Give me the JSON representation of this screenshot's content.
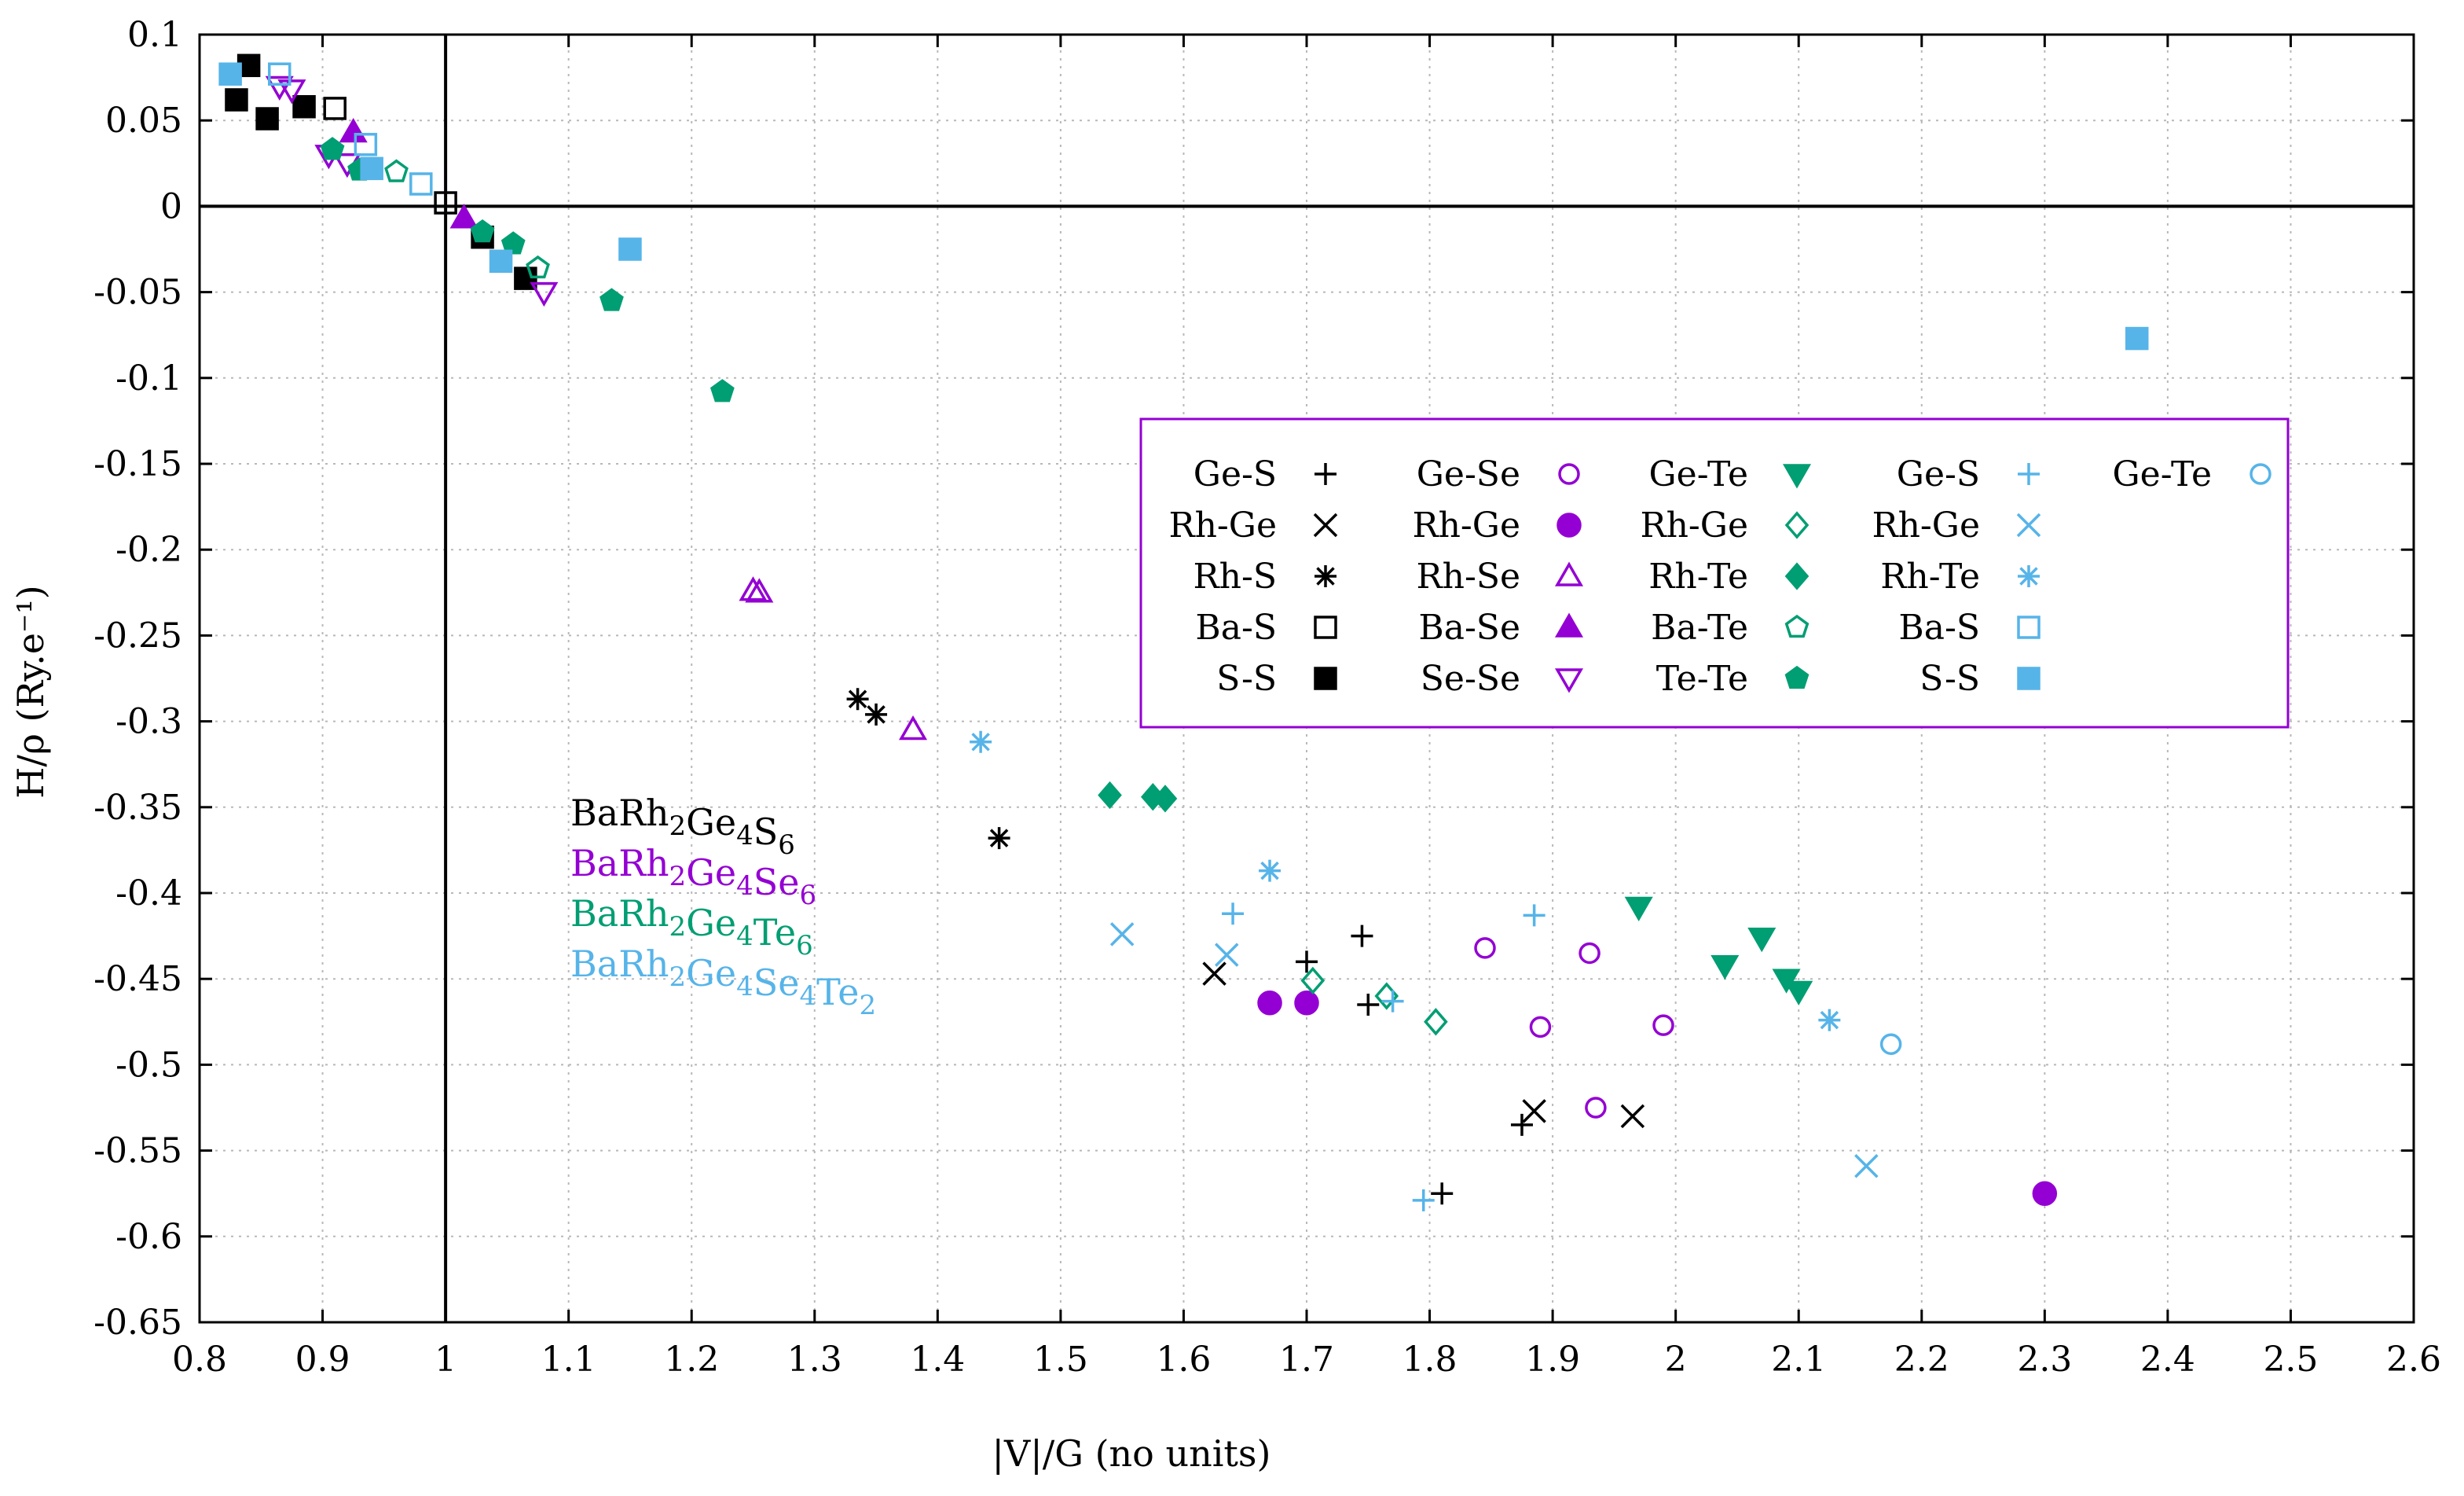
{
  "chart_data": {
    "type": "scatter",
    "xlabel": "|V|/G (no units)",
    "ylabel": "H/ρ (Ry.e⁻¹)",
    "xlim": [
      0.8,
      2.6
    ],
    "ylim": [
      -0.65,
      0.1
    ],
    "grid": true,
    "legend_position": "middle-right",
    "x_ticks": [
      "0.8",
      "0.9",
      "1",
      "1.1",
      "1.2",
      "1.3",
      "1.4",
      "1.5",
      "1.6",
      "1.7",
      "1.8",
      "1.9",
      "2",
      "2.1",
      "2.2",
      "2.3",
      "2.4",
      "2.5",
      "2.6"
    ],
    "y_ticks": [
      "0.1",
      "0.05",
      "0",
      "-0.05",
      "-0.1",
      "-0.15",
      "-0.2",
      "-0.25",
      "-0.3",
      "-0.35",
      "-0.4",
      "-0.45",
      "-0.5",
      "-0.55",
      "-0.6",
      "-0.65"
    ],
    "compounds": [
      {
        "name": "BaRh2Ge4S6",
        "color": "#000000"
      },
      {
        "name": "BaRh2Ge4Se6",
        "color": "#9400d3"
      },
      {
        "name": "BaRh2Ge4Te6",
        "color": "#009e73"
      },
      {
        "name": "BaRh2Ge4Se4Te2",
        "color": "#56b4e9"
      }
    ],
    "series": [
      {
        "name": "Ge-S",
        "compound": "BaRh2Ge4S6",
        "color": "#000000",
        "marker": "plus",
        "points": [
          [
            1.7,
            -0.44
          ],
          [
            1.745,
            -0.425
          ],
          [
            1.75,
            -0.465
          ],
          [
            1.81,
            -0.575
          ],
          [
            1.875,
            -0.535
          ]
        ]
      },
      {
        "name": "Rh-Ge",
        "compound": "BaRh2Ge4S6",
        "color": "#000000",
        "marker": "cross",
        "points": [
          [
            1.625,
            -0.447
          ],
          [
            1.885,
            -0.527
          ],
          [
            1.965,
            -0.53
          ]
        ]
      },
      {
        "name": "Rh-S",
        "compound": "BaRh2Ge4S6",
        "color": "#000000",
        "marker": "star",
        "points": [
          [
            1.335,
            -0.287
          ],
          [
            1.35,
            -0.296
          ],
          [
            1.45,
            -0.368
          ]
        ]
      },
      {
        "name": "Ba-S",
        "compound": "BaRh2Ge4S6",
        "color": "#000000",
        "marker": "square-open",
        "points": [
          [
            0.91,
            0.057
          ],
          [
            1.0,
            0.002
          ]
        ]
      },
      {
        "name": "S-S",
        "compound": "BaRh2Ge4S6",
        "color": "#000000",
        "marker": "square-filled",
        "points": [
          [
            0.83,
            0.062
          ],
          [
            0.84,
            0.082
          ],
          [
            0.855,
            0.051
          ],
          [
            0.885,
            0.058
          ],
          [
            1.03,
            -0.018
          ],
          [
            1.065,
            -0.042
          ]
        ]
      },
      {
        "name": "Ge-Se",
        "compound": "BaRh2Ge4Se6",
        "color": "#9400d3",
        "marker": "circle-open",
        "points": [
          [
            1.845,
            -0.432
          ],
          [
            1.89,
            -0.478
          ],
          [
            1.93,
            -0.435
          ],
          [
            1.935,
            -0.525
          ],
          [
            1.99,
            -0.477
          ]
        ]
      },
      {
        "name": "Rh-Ge",
        "compound": "BaRh2Ge4Se6",
        "color": "#9400d3",
        "marker": "circle-filled",
        "points": [
          [
            1.67,
            -0.464
          ],
          [
            1.7,
            -0.464
          ],
          [
            2.3,
            -0.575
          ]
        ]
      },
      {
        "name": "Rh-Se",
        "compound": "BaRh2Ge4Se6",
        "color": "#9400d3",
        "marker": "triangle-up-open",
        "points": [
          [
            1.25,
            -0.224
          ],
          [
            1.255,
            -0.225
          ],
          [
            1.38,
            -0.305
          ]
        ]
      },
      {
        "name": "Ba-Se",
        "compound": "BaRh2Ge4Se6",
        "color": "#9400d3",
        "marker": "triangle-up-filled",
        "points": [
          [
            0.925,
            0.043
          ],
          [
            1.015,
            -0.007
          ]
        ]
      },
      {
        "name": "Se-Se",
        "compound": "BaRh2Ge4Se6",
        "color": "#9400d3",
        "marker": "triangle-down-open",
        "points": [
          [
            0.865,
            0.07
          ],
          [
            0.875,
            0.068
          ],
          [
            0.905,
            0.03
          ],
          [
            0.92,
            0.025
          ],
          [
            1.08,
            -0.05
          ]
        ]
      },
      {
        "name": "Ge-Te",
        "compound": "BaRh2Ge4Te6",
        "color": "#009e73",
        "marker": "triangle-down-filled",
        "points": [
          [
            1.97,
            -0.408
          ],
          [
            2.04,
            -0.442
          ],
          [
            2.07,
            -0.426
          ],
          [
            2.09,
            -0.45
          ],
          [
            2.1,
            -0.457
          ]
        ]
      },
      {
        "name": "Rh-Ge",
        "compound": "BaRh2Ge4Te6",
        "color": "#009e73",
        "marker": "diamond-open",
        "points": [
          [
            1.705,
            -0.451
          ],
          [
            1.765,
            -0.46
          ],
          [
            1.805,
            -0.475
          ]
        ]
      },
      {
        "name": "Rh-Te",
        "compound": "BaRh2Ge4Te6",
        "color": "#009e73",
        "marker": "diamond-filled",
        "points": [
          [
            1.54,
            -0.343
          ],
          [
            1.575,
            -0.344
          ],
          [
            1.585,
            -0.345
          ]
        ]
      },
      {
        "name": "Ba-Te",
        "compound": "BaRh2Ge4Te6",
        "color": "#009e73",
        "marker": "pentagon-open",
        "points": [
          [
            0.96,
            0.02
          ],
          [
            1.075,
            -0.036
          ]
        ]
      },
      {
        "name": "Te-Te",
        "compound": "BaRh2Ge4Te6",
        "color": "#009e73",
        "marker": "pentagon-filled",
        "points": [
          [
            0.908,
            0.033
          ],
          [
            0.93,
            0.021
          ],
          [
            1.03,
            -0.015
          ],
          [
            1.055,
            -0.022
          ],
          [
            1.135,
            -0.055
          ],
          [
            1.225,
            -0.108
          ]
        ]
      },
      {
        "name": "Ge-S",
        "compound": "BaRh2Ge4Se4Te2",
        "color": "#56b4e9",
        "marker": "plus",
        "points": [
          [
            1.64,
            -0.412
          ],
          [
            1.77,
            -0.463
          ],
          [
            1.795,
            -0.579
          ],
          [
            1.885,
            -0.413
          ]
        ]
      },
      {
        "name": "Rh-Ge",
        "compound": "BaRh2Ge4Se4Te2",
        "color": "#56b4e9",
        "marker": "cross",
        "points": [
          [
            1.55,
            -0.424
          ],
          [
            1.635,
            -0.436
          ],
          [
            2.155,
            -0.559
          ]
        ]
      },
      {
        "name": "Rh-Te",
        "compound": "BaRh2Ge4Se4Te2",
        "color": "#56b4e9",
        "marker": "star",
        "points": [
          [
            1.435,
            -0.312
          ],
          [
            1.67,
            -0.387
          ],
          [
            2.125,
            -0.474
          ]
        ]
      },
      {
        "name": "Ba-S",
        "compound": "BaRh2Ge4Se4Te2",
        "color": "#56b4e9",
        "marker": "square-open",
        "points": [
          [
            0.865,
            0.077
          ],
          [
            0.935,
            0.036
          ],
          [
            0.98,
            0.013
          ]
        ]
      },
      {
        "name": "S-S",
        "compound": "BaRh2Ge4Se4Te2",
        "color": "#56b4e9",
        "marker": "square-filled",
        "points": [
          [
            0.825,
            0.077
          ],
          [
            0.94,
            0.022
          ],
          [
            1.045,
            -0.032
          ],
          [
            1.15,
            -0.025
          ],
          [
            2.375,
            -0.077
          ]
        ]
      },
      {
        "name": "Ge-Te",
        "compound": "BaRh2Ge4Se4Te2",
        "color": "#56b4e9",
        "marker": "circle-open",
        "points": [
          [
            2.175,
            -0.488
          ]
        ]
      }
    ]
  }
}
